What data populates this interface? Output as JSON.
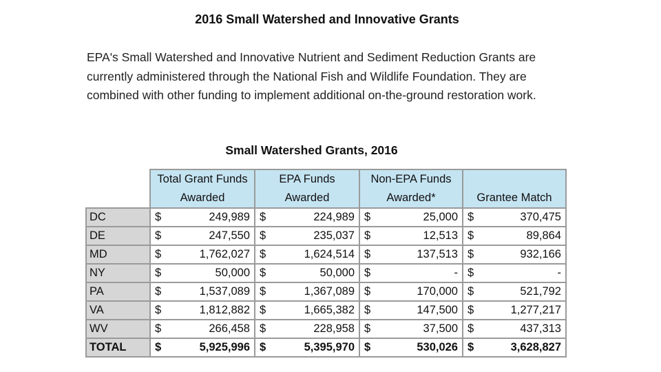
{
  "document": {
    "title": "2016 Small Watershed and Innovative Grants",
    "intro_lines": [
      "EPA's Small Watershed and Innovative Nutrient and Sediment Reduction Grants are",
      "currently administered through the National Fish and Wildlife Foundation. They are",
      "combined with other funding to implement additional on-the-ground restoration work."
    ]
  },
  "table": {
    "title": "Small Watershed Grants, 2016",
    "headers": {
      "total": [
        "Total Grant Funds",
        "Awarded"
      ],
      "epa": [
        "EPA Funds",
        "Awarded"
      ],
      "non_epa": [
        "Non-EPA Funds",
        "Awarded*"
      ],
      "match": "Grantee Match"
    },
    "currency": "$",
    "rows": [
      {
        "state": "DC",
        "total": "249,989",
        "epa": "224,989",
        "non_epa": "25,000",
        "match": "370,475"
      },
      {
        "state": "DE",
        "total": "247,550",
        "epa": "235,037",
        "non_epa": "12,513",
        "match": "89,864"
      },
      {
        "state": "MD",
        "total": "1,762,027",
        "epa": "1,624,514",
        "non_epa": "137,513",
        "match": "932,166"
      },
      {
        "state": "NY",
        "total": "50,000",
        "epa": "50,000",
        "non_epa": "-",
        "match": "-"
      },
      {
        "state": "PA",
        "total": "1,537,089",
        "epa": "1,367,089",
        "non_epa": "170,000",
        "match": "521,792"
      },
      {
        "state": "VA",
        "total": "1,812,882",
        "epa": "1,665,382",
        "non_epa": "147,500",
        "match": "1,277,217"
      },
      {
        "state": "WV",
        "total": "266,458",
        "epa": "228,958",
        "non_epa": "37,500",
        "match": "437,313"
      }
    ],
    "total_row": {
      "state": "TOTAL",
      "total": "5,925,996",
      "epa": "5,395,970",
      "non_epa": "530,026",
      "match": "3,628,827"
    }
  }
}
